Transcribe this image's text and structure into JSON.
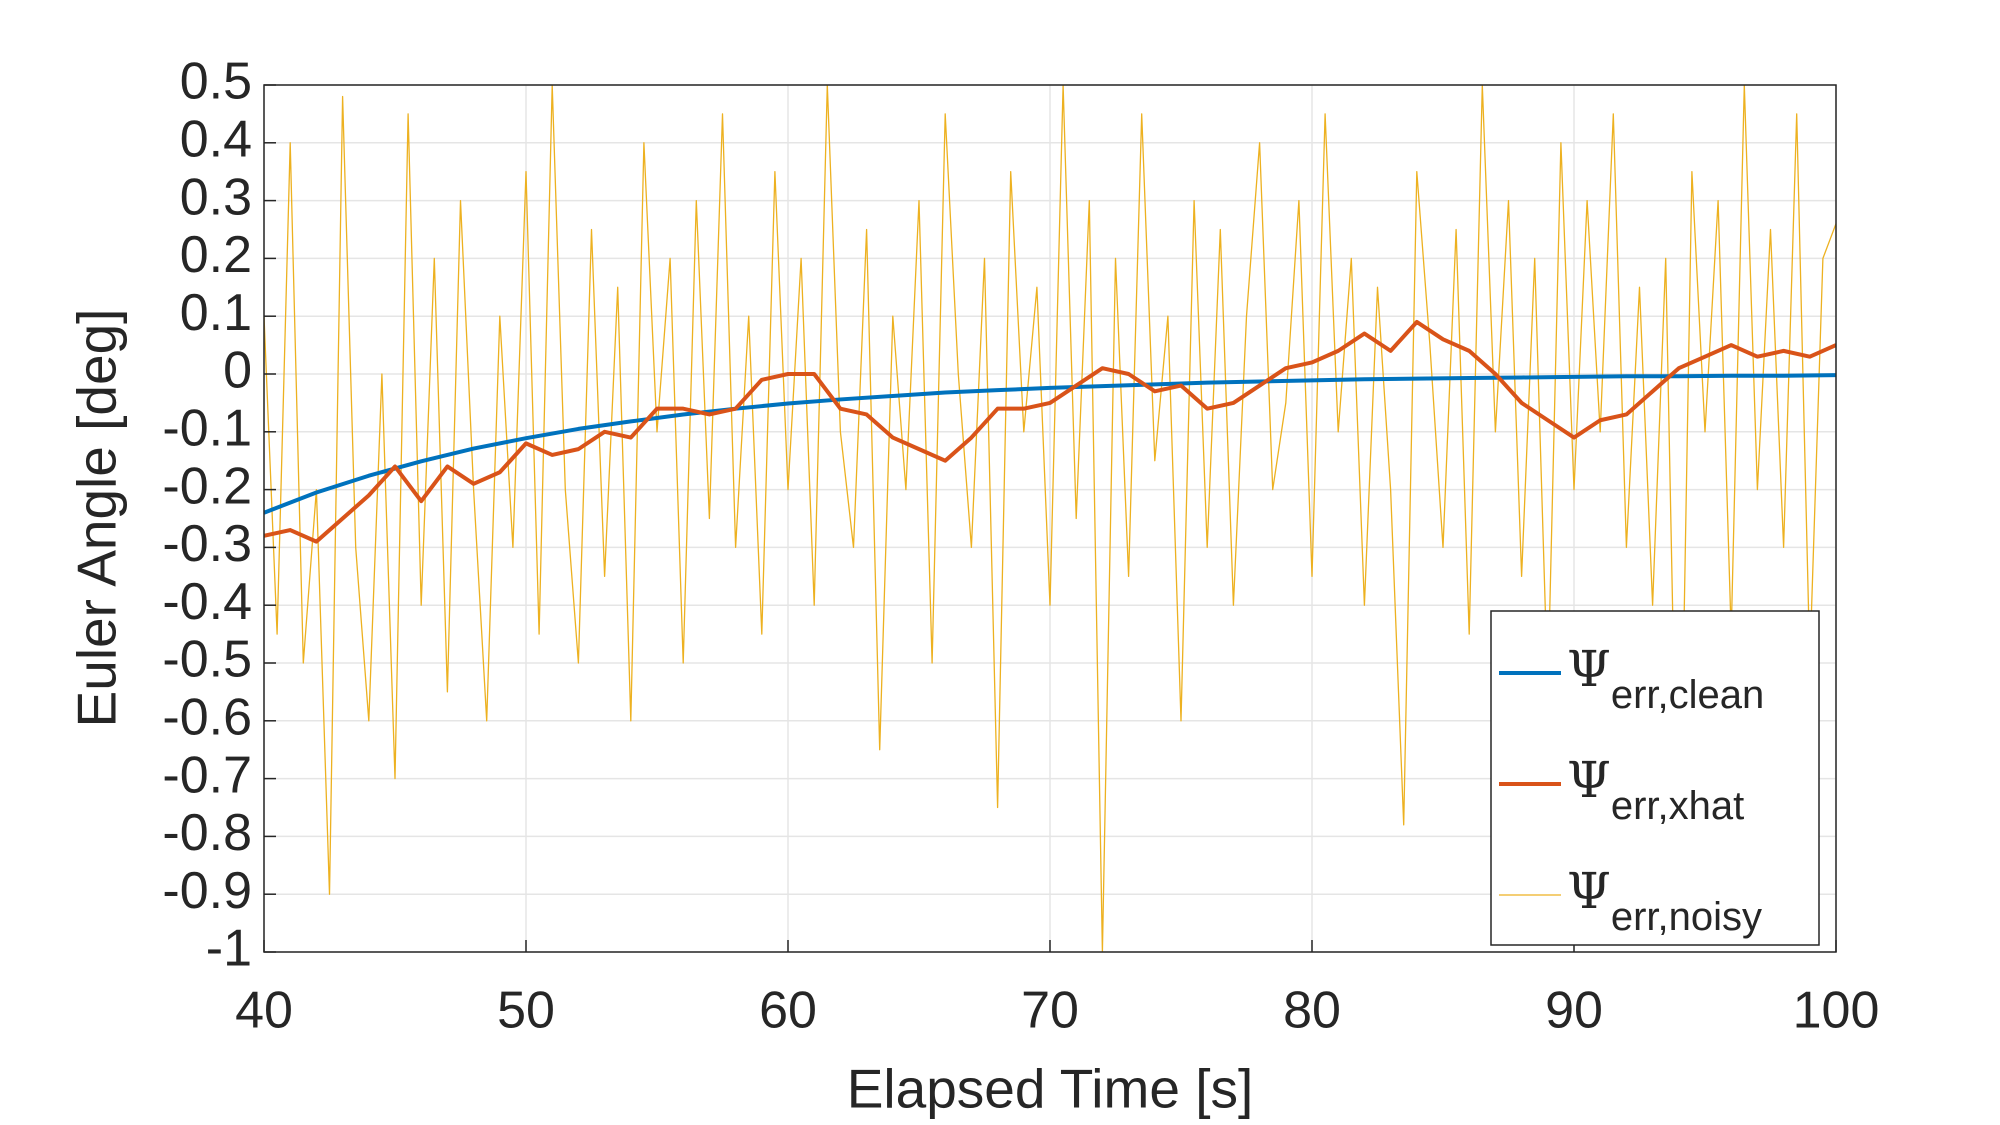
{
  "chart_data": {
    "type": "line",
    "x_label": "Elapsed Time [s]",
    "y_label": "Euler Angle [deg]",
    "xlim": [
      40,
      100
    ],
    "xticks": [
      40,
      50,
      60,
      70,
      80,
      90,
      100
    ],
    "ylim": [
      -1,
      0.5
    ],
    "yticks": [
      0.5,
      0.4,
      0.3,
      0.2,
      0.1,
      0,
      -0.1,
      -0.2,
      -0.3,
      -0.4,
      -0.5,
      -0.6,
      -0.7,
      -0.8,
      -0.9,
      -1
    ],
    "grid": true,
    "legend": "lower right",
    "series": [
      {
        "name": "Ψerr,clean",
        "color": "#0072BD",
        "x": [
          40,
          42,
          44,
          46,
          48,
          50,
          52,
          54,
          56,
          58,
          60,
          62,
          64,
          66,
          68,
          70,
          72,
          74,
          76,
          78,
          80,
          82,
          84,
          86,
          88,
          90,
          92,
          94,
          96,
          98,
          100
        ],
        "values": [
          -0.24,
          -0.205,
          -0.176,
          -0.151,
          -0.129,
          -0.111,
          -0.095,
          -0.082,
          -0.07,
          -0.06,
          -0.051,
          -0.044,
          -0.038,
          -0.032,
          -0.028,
          -0.024,
          -0.021,
          -0.018,
          -0.015,
          -0.013,
          -0.011,
          -0.009,
          -0.008,
          -0.007,
          -0.006,
          -0.005,
          -0.004,
          -0.004,
          -0.003,
          -0.003,
          -0.002
        ]
      },
      {
        "name": "Ψerr,xhat",
        "color": "#D95319",
        "x": [
          40,
          41,
          42,
          43,
          44,
          45,
          46,
          47,
          48,
          49,
          50,
          51,
          52,
          53,
          54,
          55,
          56,
          57,
          58,
          59,
          60,
          61,
          62,
          63,
          64,
          65,
          66,
          67,
          68,
          69,
          70,
          71,
          72,
          73,
          74,
          75,
          76,
          77,
          78,
          79,
          80,
          81,
          82,
          83,
          84,
          85,
          86,
          87,
          88,
          89,
          90,
          91,
          92,
          93,
          94,
          95,
          96,
          97,
          98,
          99,
          100
        ],
        "values": [
          -0.28,
          -0.27,
          -0.29,
          -0.25,
          -0.21,
          -0.16,
          -0.22,
          -0.16,
          -0.19,
          -0.17,
          -0.12,
          -0.14,
          -0.13,
          -0.1,
          -0.11,
          -0.06,
          -0.06,
          -0.07,
          -0.06,
          -0.01,
          0,
          0,
          -0.06,
          -0.07,
          -0.11,
          -0.13,
          -0.15,
          -0.11,
          -0.06,
          -0.06,
          -0.05,
          -0.02,
          0.01,
          0,
          -0.03,
          -0.02,
          -0.06,
          -0.05,
          -0.02,
          0.01,
          0.02,
          0.04,
          0.07,
          0.04,
          0.09,
          0.06,
          0.04,
          0,
          -0.05,
          -0.08,
          -0.11,
          -0.08,
          -0.07,
          -0.03,
          0.01,
          0.03,
          0.05,
          0.03,
          0.04,
          0.03,
          0.05
        ]
      },
      {
        "name": "Ψerr,noisy",
        "color": "#EDB120",
        "x": [
          40,
          40.5,
          41,
          41.5,
          42,
          42.5,
          43,
          43.5,
          44,
          44.5,
          45,
          45.5,
          46,
          46.5,
          47,
          47.5,
          48,
          48.5,
          49,
          49.5,
          50,
          50.5,
          51,
          51.5,
          52,
          52.5,
          53,
          53.5,
          54,
          54.5,
          55,
          55.5,
          56,
          56.5,
          57,
          57.5,
          58,
          58.5,
          59,
          59.5,
          60,
          60.5,
          61,
          61.5,
          62,
          62.5,
          63,
          63.5,
          64,
          64.5,
          65,
          65.5,
          66,
          66.5,
          67,
          67.5,
          68,
          68.5,
          69,
          69.5,
          70,
          70.5,
          71,
          71.5,
          72,
          72.5,
          73,
          73.5,
          74,
          74.5,
          75,
          75.5,
          76,
          76.5,
          77,
          77.5,
          78,
          78.5,
          79,
          79.5,
          80,
          80.5,
          81,
          81.5,
          82,
          82.5,
          83,
          83.5,
          84,
          84.5,
          85,
          85.5,
          86,
          86.5,
          87,
          87.5,
          88,
          88.5,
          89,
          89.5,
          90,
          90.5,
          91,
          91.5,
          92,
          92.5,
          93,
          93.5,
          94,
          94.5,
          95,
          95.5,
          96,
          96.5,
          97,
          97.5,
          98,
          98.5,
          99,
          99.5,
          100
        ],
        "values": [
          0.1,
          -0.45,
          0.4,
          -0.5,
          -0.2,
          -0.9,
          0.48,
          -0.3,
          -0.6,
          0,
          -0.7,
          0.45,
          -0.4,
          0.2,
          -0.55,
          0.3,
          -0.2,
          -0.6,
          0.1,
          -0.3,
          0.35,
          -0.45,
          0.5,
          -0.2,
          -0.5,
          0.25,
          -0.35,
          0.15,
          -0.6,
          0.4,
          -0.1,
          0.2,
          -0.5,
          0.3,
          -0.25,
          0.45,
          -0.3,
          0.1,
          -0.45,
          0.35,
          -0.2,
          0.2,
          -0.4,
          0.5,
          -0.1,
          -0.3,
          0.25,
          -0.65,
          0.1,
          -0.2,
          0.3,
          -0.5,
          0.45,
          0,
          -0.3,
          0.2,
          -0.75,
          0.35,
          -0.1,
          0.15,
          -0.4,
          0.5,
          -0.25,
          0.3,
          -1,
          0.2,
          -0.35,
          0.45,
          -0.15,
          0.1,
          -0.6,
          0.3,
          -0.3,
          0.25,
          -0.4,
          0.1,
          0.4,
          -0.2,
          -0.05,
          0.3,
          -0.35,
          0.45,
          -0.1,
          0.2,
          -0.4,
          0.15,
          -0.2,
          -0.78,
          0.35,
          0.05,
          -0.3,
          0.25,
          -0.45,
          0.5,
          -0.1,
          0.3,
          -0.35,
          0.2,
          -0.55,
          0.4,
          -0.2,
          0.3,
          -0.1,
          0.45,
          -0.3,
          0.15,
          -0.4,
          0.2,
          -0.95,
          0.35,
          -0.1,
          0.3,
          -0.45,
          0.5,
          -0.2,
          0.25,
          -0.3,
          0.45,
          -0.5,
          0.2,
          0.26
        ]
      }
    ]
  }
}
